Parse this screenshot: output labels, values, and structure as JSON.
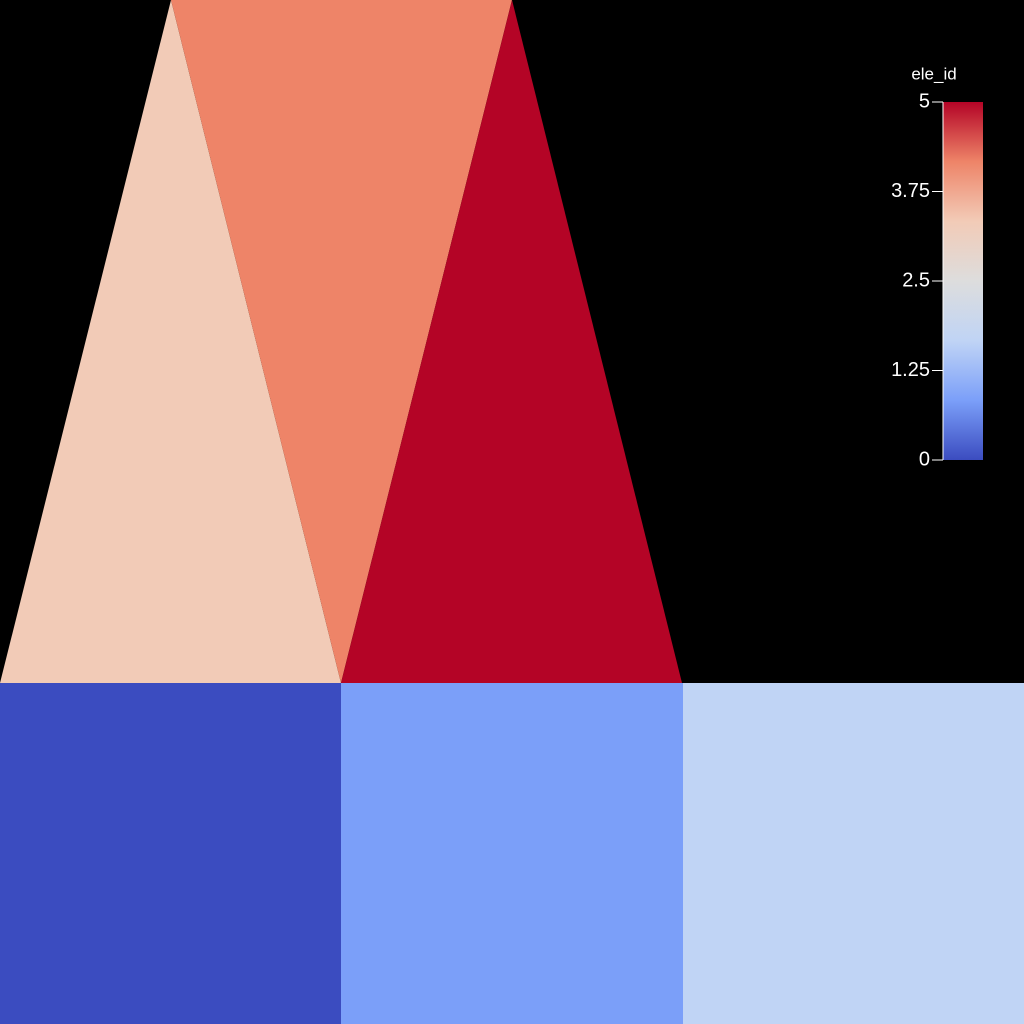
{
  "chart_data": {
    "type": "mesh",
    "colorbar_title": "ele_id",
    "elements": [
      {
        "value": 0,
        "color": "#3b4cc0"
      },
      {
        "value": 1,
        "color": "#7b9ff9"
      },
      {
        "value": 2,
        "color": "#c0d4f5"
      },
      {
        "value": 3,
        "color": "#f2cbb7"
      },
      {
        "value": 4,
        "color": "#ee8468"
      },
      {
        "value": 5,
        "color": "#b40426"
      }
    ],
    "clim": [
      0,
      5
    ],
    "cticks": [
      0,
      1.25,
      2.5,
      3.75,
      5
    ],
    "colormap": [
      "#3b4cc0",
      "#7b9ff9",
      "#c0d4f5",
      "#dddddd",
      "#f2cbb7",
      "#ee8468",
      "#b40426"
    ]
  }
}
